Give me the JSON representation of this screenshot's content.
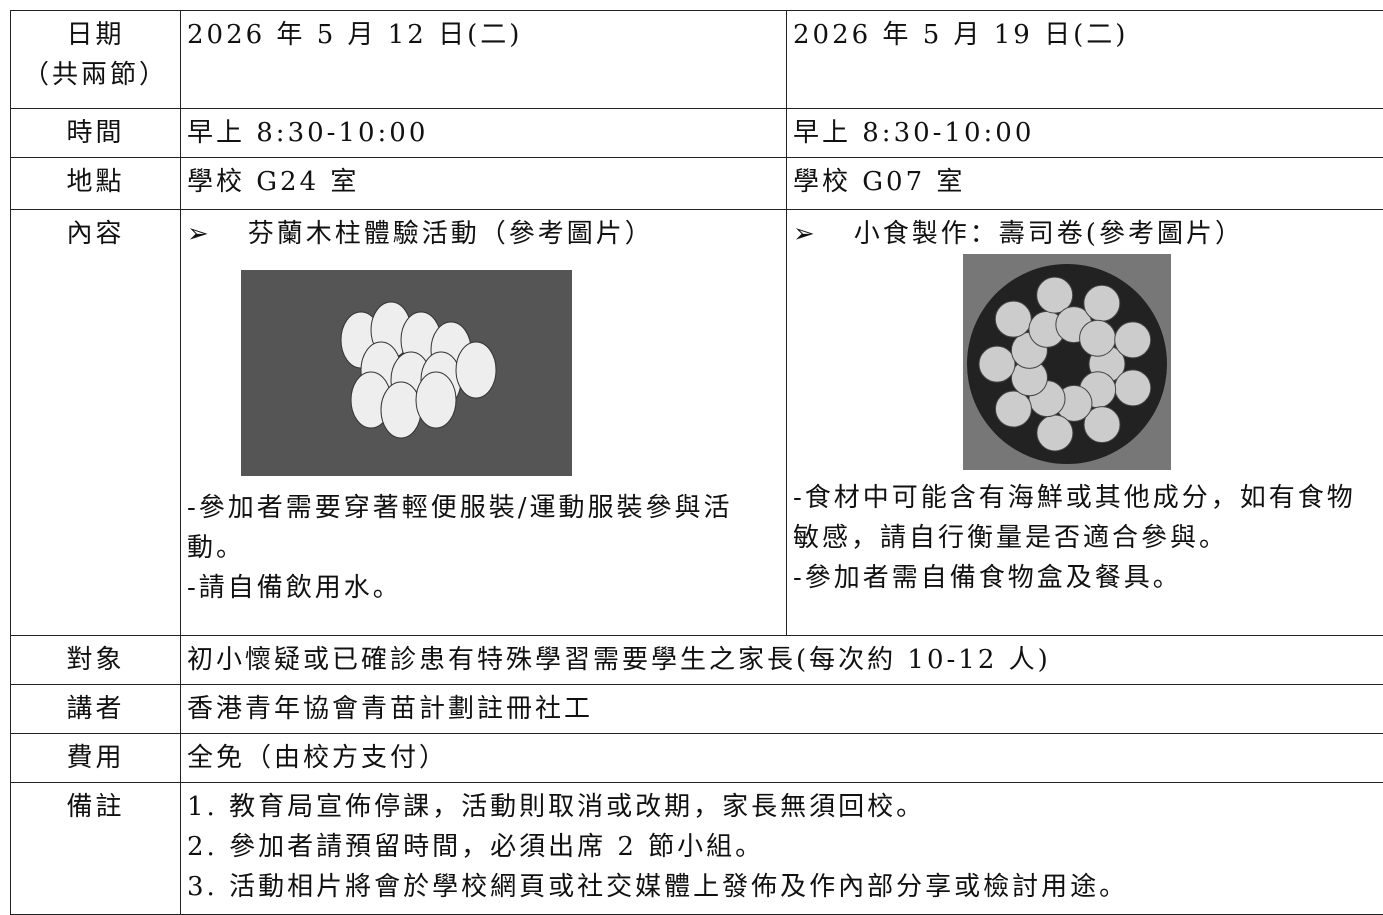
{
  "table": {
    "rows": [
      {
        "label": [
          "日期",
          "（共兩節）"
        ],
        "cells": [
          "2026 年 5 月 12 日(二)",
          "2026 年 5 月 19 日(二)"
        ]
      },
      {
        "label": [
          "時間"
        ],
        "cells": [
          "早上 8:30-10:00",
          "早上 8:30-10:00"
        ]
      },
      {
        "label": [
          "地點"
        ],
        "cells": [
          "學校 G24 室",
          "學校 G07 室"
        ]
      },
      {
        "label": [
          "內容"
        ],
        "cells": [
          {
            "marker": "➢",
            "heading": "芬蘭木柱體驗活動（參考圖片）",
            "notes": [
              "-參加者需要穿著輕便服裝/運動服裝參與活動。",
              "-請自備飲用水。"
            ]
          },
          {
            "marker": "➢",
            "heading": "小食製作：壽司卷(參考圖片）",
            "notes": [
              "-食材中可能含有海鮮或其他成分，如有食物敏感，請自行衡量是否適合參與。",
              "-參加者需自備食物盒及餐具。"
            ]
          }
        ]
      },
      {
        "label": [
          "對象"
        ],
        "cells": [
          "初小懷疑或已確診患有特殊學習需要學生之家長(每次約 10-12 人)"
        ]
      },
      {
        "label": [
          "講者"
        ],
        "cells": [
          "香港青年協會青苗計劃註冊社工"
        ]
      },
      {
        "label": [
          "費用"
        ],
        "cells": [
          "全免（由校方支付）"
        ]
      },
      {
        "label": [
          "備註"
        ],
        "cells": [
          [
            "1.  教育局宣佈停課，活動則取消或改期，家長無須回校。",
            "2.  參加者請預留時間，必須出席 2 節小組。",
            "3.  活動相片將會於學校網頁或社交媒體上發佈及作內部分享或檢討用途。"
          ]
        ]
      }
    ]
  }
}
